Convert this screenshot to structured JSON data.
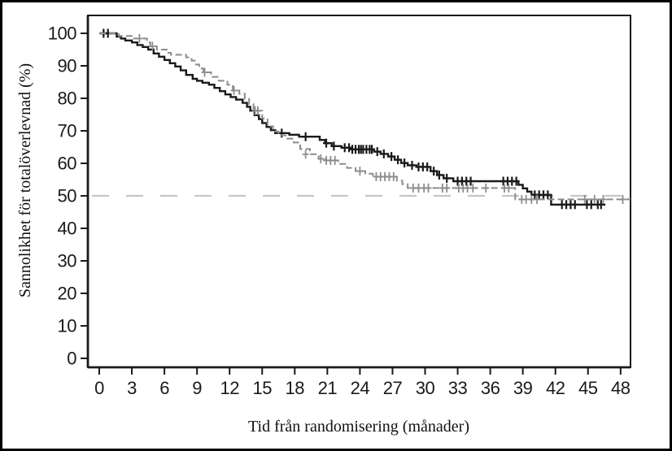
{
  "chart_data": {
    "type": "line",
    "subtype": "kaplan-meier-step-curves",
    "title": "",
    "xlabel": "Tid från randomisering (månader)",
    "ylabel": "Sannolikhet för totalöverlevnad (%)",
    "x_ticks": [
      0,
      3,
      6,
      9,
      12,
      15,
      18,
      21,
      24,
      27,
      30,
      33,
      36,
      39,
      42,
      45,
      48
    ],
    "y_ticks": [
      0,
      10,
      20,
      30,
      40,
      50,
      60,
      70,
      80,
      90,
      100
    ],
    "xlim": [
      0,
      48.9
    ],
    "ylim": [
      0,
      100
    ],
    "grid": false,
    "legend": "none",
    "frame_color": "#1a1a1a",
    "reference_line": {
      "y": 50,
      "style": "long-dash",
      "color": "#c6c6c6"
    },
    "series": [
      {
        "name": "arm-1-solid-black",
        "color": "#1a1a1a",
        "line_style": "solid",
        "steps": [
          [
            0,
            100
          ],
          [
            1.6,
            99
          ],
          [
            2.0,
            98.4
          ],
          [
            2.4,
            97.8
          ],
          [
            3.0,
            97.2
          ],
          [
            3.5,
            96.4
          ],
          [
            4.0,
            95.8
          ],
          [
            4.5,
            95.0
          ],
          [
            5.0,
            93.8
          ],
          [
            5.5,
            92.8
          ],
          [
            6.0,
            91.8
          ],
          [
            6.5,
            90.8
          ],
          [
            7.0,
            89.8
          ],
          [
            7.5,
            88.6
          ],
          [
            8.0,
            87.2
          ],
          [
            8.6,
            86.0
          ],
          [
            9.0,
            85.4
          ],
          [
            9.5,
            84.8
          ],
          [
            10.1,
            84.2
          ],
          [
            10.6,
            83.2
          ],
          [
            11.1,
            82.2
          ],
          [
            11.6,
            81.2
          ],
          [
            12.1,
            80.4
          ],
          [
            12.6,
            79.6
          ],
          [
            13.2,
            78.6
          ],
          [
            13.6,
            77.4
          ],
          [
            13.9,
            76.2
          ],
          [
            14.3,
            74.8
          ],
          [
            14.7,
            73.6
          ],
          [
            15.0,
            72.4
          ],
          [
            15.4,
            71.2
          ],
          [
            15.8,
            70.2
          ],
          [
            16.2,
            69.3
          ],
          [
            17.5,
            68.8
          ],
          [
            18.4,
            68.2
          ],
          [
            20.3,
            67.2
          ],
          [
            20.8,
            66.2
          ],
          [
            21.4,
            65.3
          ],
          [
            22.3,
            64.8
          ],
          [
            23.2,
            64.3
          ],
          [
            25.3,
            63.6
          ],
          [
            25.9,
            62.9
          ],
          [
            26.6,
            62.1
          ],
          [
            27.2,
            61.1
          ],
          [
            27.8,
            60.1
          ],
          [
            28.4,
            59.4
          ],
          [
            29.2,
            58.9
          ],
          [
            30.5,
            57.6
          ],
          [
            31.1,
            56.4
          ],
          [
            31.7,
            55.4
          ],
          [
            32.6,
            54.5
          ],
          [
            38.6,
            53.4
          ],
          [
            39.0,
            52.3
          ],
          [
            39.4,
            51.3
          ],
          [
            39.8,
            50.3
          ],
          [
            41.6,
            47.3
          ],
          [
            46.6,
            47.3
          ]
        ],
        "censor_marks": [
          [
            0.4,
            100
          ],
          [
            0.8,
            100
          ],
          [
            16.8,
            69.3
          ],
          [
            19.0,
            68.2
          ],
          [
            20.9,
            66.2
          ],
          [
            21.6,
            65.3
          ],
          [
            22.6,
            64.8
          ],
          [
            23.0,
            64.8
          ],
          [
            23.3,
            64.3
          ],
          [
            23.6,
            64.3
          ],
          [
            23.9,
            64.3
          ],
          [
            24.1,
            64.3
          ],
          [
            24.3,
            64.3
          ],
          [
            24.6,
            64.3
          ],
          [
            24.9,
            64.3
          ],
          [
            25.1,
            64.3
          ],
          [
            25.6,
            63.6
          ],
          [
            26.2,
            62.9
          ],
          [
            26.9,
            62.1
          ],
          [
            27.5,
            61.1
          ],
          [
            28.1,
            60.1
          ],
          [
            28.8,
            59.4
          ],
          [
            29.4,
            58.9
          ],
          [
            29.8,
            58.9
          ],
          [
            30.2,
            58.9
          ],
          [
            30.8,
            57.6
          ],
          [
            31.3,
            56.4
          ],
          [
            32.0,
            55.4
          ],
          [
            33.0,
            54.5
          ],
          [
            33.4,
            54.5
          ],
          [
            33.8,
            54.5
          ],
          [
            34.2,
            54.5
          ],
          [
            37.2,
            54.5
          ],
          [
            37.6,
            54.5
          ],
          [
            38.0,
            54.5
          ],
          [
            38.4,
            54.5
          ],
          [
            40.1,
            50.3
          ],
          [
            40.5,
            50.3
          ],
          [
            40.9,
            50.3
          ],
          [
            41.3,
            50.3
          ],
          [
            42.6,
            47.3
          ],
          [
            43.0,
            47.3
          ],
          [
            43.4,
            47.3
          ],
          [
            43.8,
            47.3
          ],
          [
            44.9,
            47.3
          ],
          [
            45.3,
            47.3
          ],
          [
            45.9,
            47.3
          ],
          [
            46.2,
            47.3
          ]
        ]
      },
      {
        "name": "arm-2-dashed-gray",
        "color": "#8c8c8c",
        "line_style": "dashed",
        "steps": [
          [
            0,
            100
          ],
          [
            1.8,
            99.2
          ],
          [
            3.0,
            98.4
          ],
          [
            4.4,
            97.2
          ],
          [
            4.7,
            96.0
          ],
          [
            5.3,
            95.0
          ],
          [
            6.2,
            94.0
          ],
          [
            6.6,
            93.4
          ],
          [
            8.0,
            92.6
          ],
          [
            8.5,
            91.6
          ],
          [
            8.9,
            90.4
          ],
          [
            9.2,
            89.2
          ],
          [
            9.6,
            88.0
          ],
          [
            10.3,
            86.6
          ],
          [
            11.0,
            85.4
          ],
          [
            11.8,
            84.2
          ],
          [
            12.3,
            82.4
          ],
          [
            12.9,
            81.4
          ],
          [
            13.4,
            79.8
          ],
          [
            13.8,
            78.2
          ],
          [
            14.2,
            76.2
          ],
          [
            15.0,
            73.8
          ],
          [
            15.5,
            71.4
          ],
          [
            16.0,
            69.8
          ],
          [
            16.5,
            68.6
          ],
          [
            17.3,
            67.6
          ],
          [
            17.9,
            66.4
          ],
          [
            18.5,
            64.4
          ],
          [
            19.4,
            62.8
          ],
          [
            20.2,
            61.4
          ],
          [
            20.8,
            60.9
          ],
          [
            22.0,
            59.8
          ],
          [
            22.8,
            58.6
          ],
          [
            23.6,
            57.6
          ],
          [
            24.5,
            56.8
          ],
          [
            25.2,
            55.9
          ],
          [
            27.4,
            54.7
          ],
          [
            27.9,
            53.6
          ],
          [
            28.4,
            52.4
          ],
          [
            38.3,
            48.9
          ],
          [
            48.9,
            48.9
          ]
        ],
        "censor_marks": [
          [
            3.7,
            98.4
          ],
          [
            4.9,
            96.0
          ],
          [
            9.7,
            88.0
          ],
          [
            12.4,
            82.4
          ],
          [
            14.35,
            76.2
          ],
          [
            14.6,
            76.2
          ],
          [
            19.0,
            62.8
          ],
          [
            20.4,
            61.4
          ],
          [
            20.9,
            60.9
          ],
          [
            21.3,
            60.9
          ],
          [
            21.7,
            60.9
          ],
          [
            24.0,
            57.6
          ],
          [
            25.5,
            55.9
          ],
          [
            25.9,
            55.9
          ],
          [
            26.3,
            55.9
          ],
          [
            26.7,
            55.9
          ],
          [
            27.1,
            55.9
          ],
          [
            28.9,
            52.4
          ],
          [
            29.4,
            52.4
          ],
          [
            29.9,
            52.4
          ],
          [
            30.3,
            52.4
          ],
          [
            31.6,
            52.4
          ],
          [
            32.0,
            52.4
          ],
          [
            33.1,
            52.4
          ],
          [
            33.5,
            52.4
          ],
          [
            33.9,
            52.4
          ],
          [
            34.4,
            52.4
          ],
          [
            35.6,
            52.4
          ],
          [
            37.3,
            52.4
          ],
          [
            37.7,
            52.4
          ],
          [
            38.9,
            48.9
          ],
          [
            39.3,
            48.9
          ],
          [
            39.8,
            48.9
          ],
          [
            40.3,
            48.9
          ],
          [
            44.7,
            48.9
          ],
          [
            45.6,
            48.9
          ],
          [
            46.4,
            48.9
          ],
          [
            48.2,
            48.9
          ]
        ]
      }
    ]
  }
}
